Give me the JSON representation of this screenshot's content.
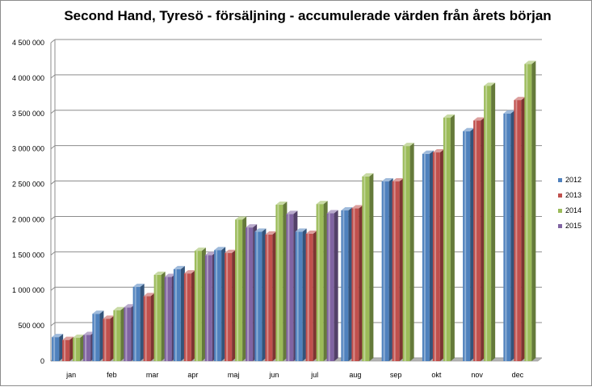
{
  "chart_data": {
    "type": "bar",
    "title": "Second Hand, Tyresö - försäljning - accumulerade värden från årets början",
    "categories": [
      "jan",
      "feb",
      "mar",
      "apr",
      "maj",
      "jun",
      "jul",
      "aug",
      "sep",
      "okt",
      "nov",
      "dec"
    ],
    "series": [
      {
        "name": "2012",
        "color": "#4f81bd",
        "values": [
          340000,
          670000,
          1050000,
          1300000,
          1570000,
          1830000,
          1830000,
          2130000,
          2540000,
          2930000,
          3250000,
          3500000
        ]
      },
      {
        "name": "2013",
        "color": "#c0504d",
        "values": [
          300000,
          600000,
          920000,
          1240000,
          1530000,
          1790000,
          1800000,
          2160000,
          2540000,
          2950000,
          3400000,
          3690000
        ]
      },
      {
        "name": "2014",
        "color": "#9bbb59",
        "values": [
          330000,
          720000,
          1220000,
          1560000,
          2000000,
          2210000,
          2220000,
          2610000,
          3040000,
          3440000,
          3890000,
          4200000
        ]
      },
      {
        "name": "2015",
        "color": "#8064a2",
        "values": [
          370000,
          760000,
          1190000,
          1500000,
          1890000,
          2080000,
          2090000,
          null,
          null,
          null,
          null,
          null
        ]
      }
    ],
    "ylim": [
      0,
      4500000
    ],
    "yticks": [
      "0",
      "500 000",
      "1 000 000",
      "1 500 000",
      "2 000 000",
      "2 500 000",
      "3 000 000",
      "3 500 000",
      "4 000 000",
      "4 500 000"
    ],
    "xlabel": "",
    "ylabel": "",
    "grid": true,
    "legend_position": "right"
  }
}
